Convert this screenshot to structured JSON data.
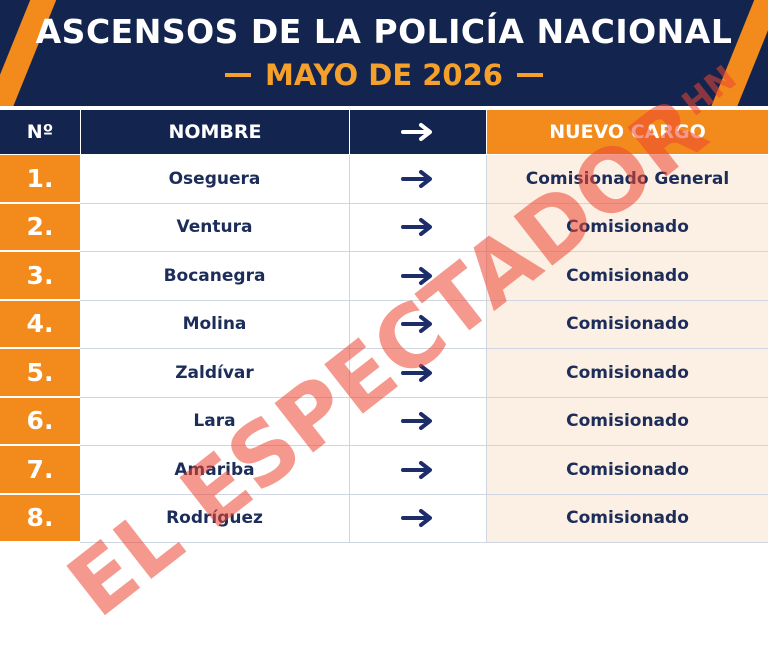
{
  "header": {
    "title": "ASCENSOS DE LA POLICÍA NACIONAL",
    "subtitle": "MAYO DE 2026"
  },
  "table": {
    "columns": [
      "Nº",
      "NOMBRE",
      "NUEVO CARGO"
    ],
    "rows": [
      [
        "1.",
        "Oseguera",
        "Comisionado General"
      ],
      [
        "2.",
        "Ventura",
        "Comisionado"
      ],
      [
        "3.",
        "Bocanegra",
        "Comisionado"
      ],
      [
        "4.",
        "Molina",
        "Comisionado"
      ],
      [
        "5.",
        "Zaldívar",
        "Comisionado"
      ],
      [
        "6.",
        "Lara",
        "Comisionado"
      ],
      [
        "7.",
        "Amariba",
        "Comisionado"
      ],
      [
        "8.",
        "Rodríguez",
        "Comisionado"
      ]
    ]
  },
  "watermark": {
    "text": "EL ESPECTADOR",
    "suffix": "HN"
  }
}
